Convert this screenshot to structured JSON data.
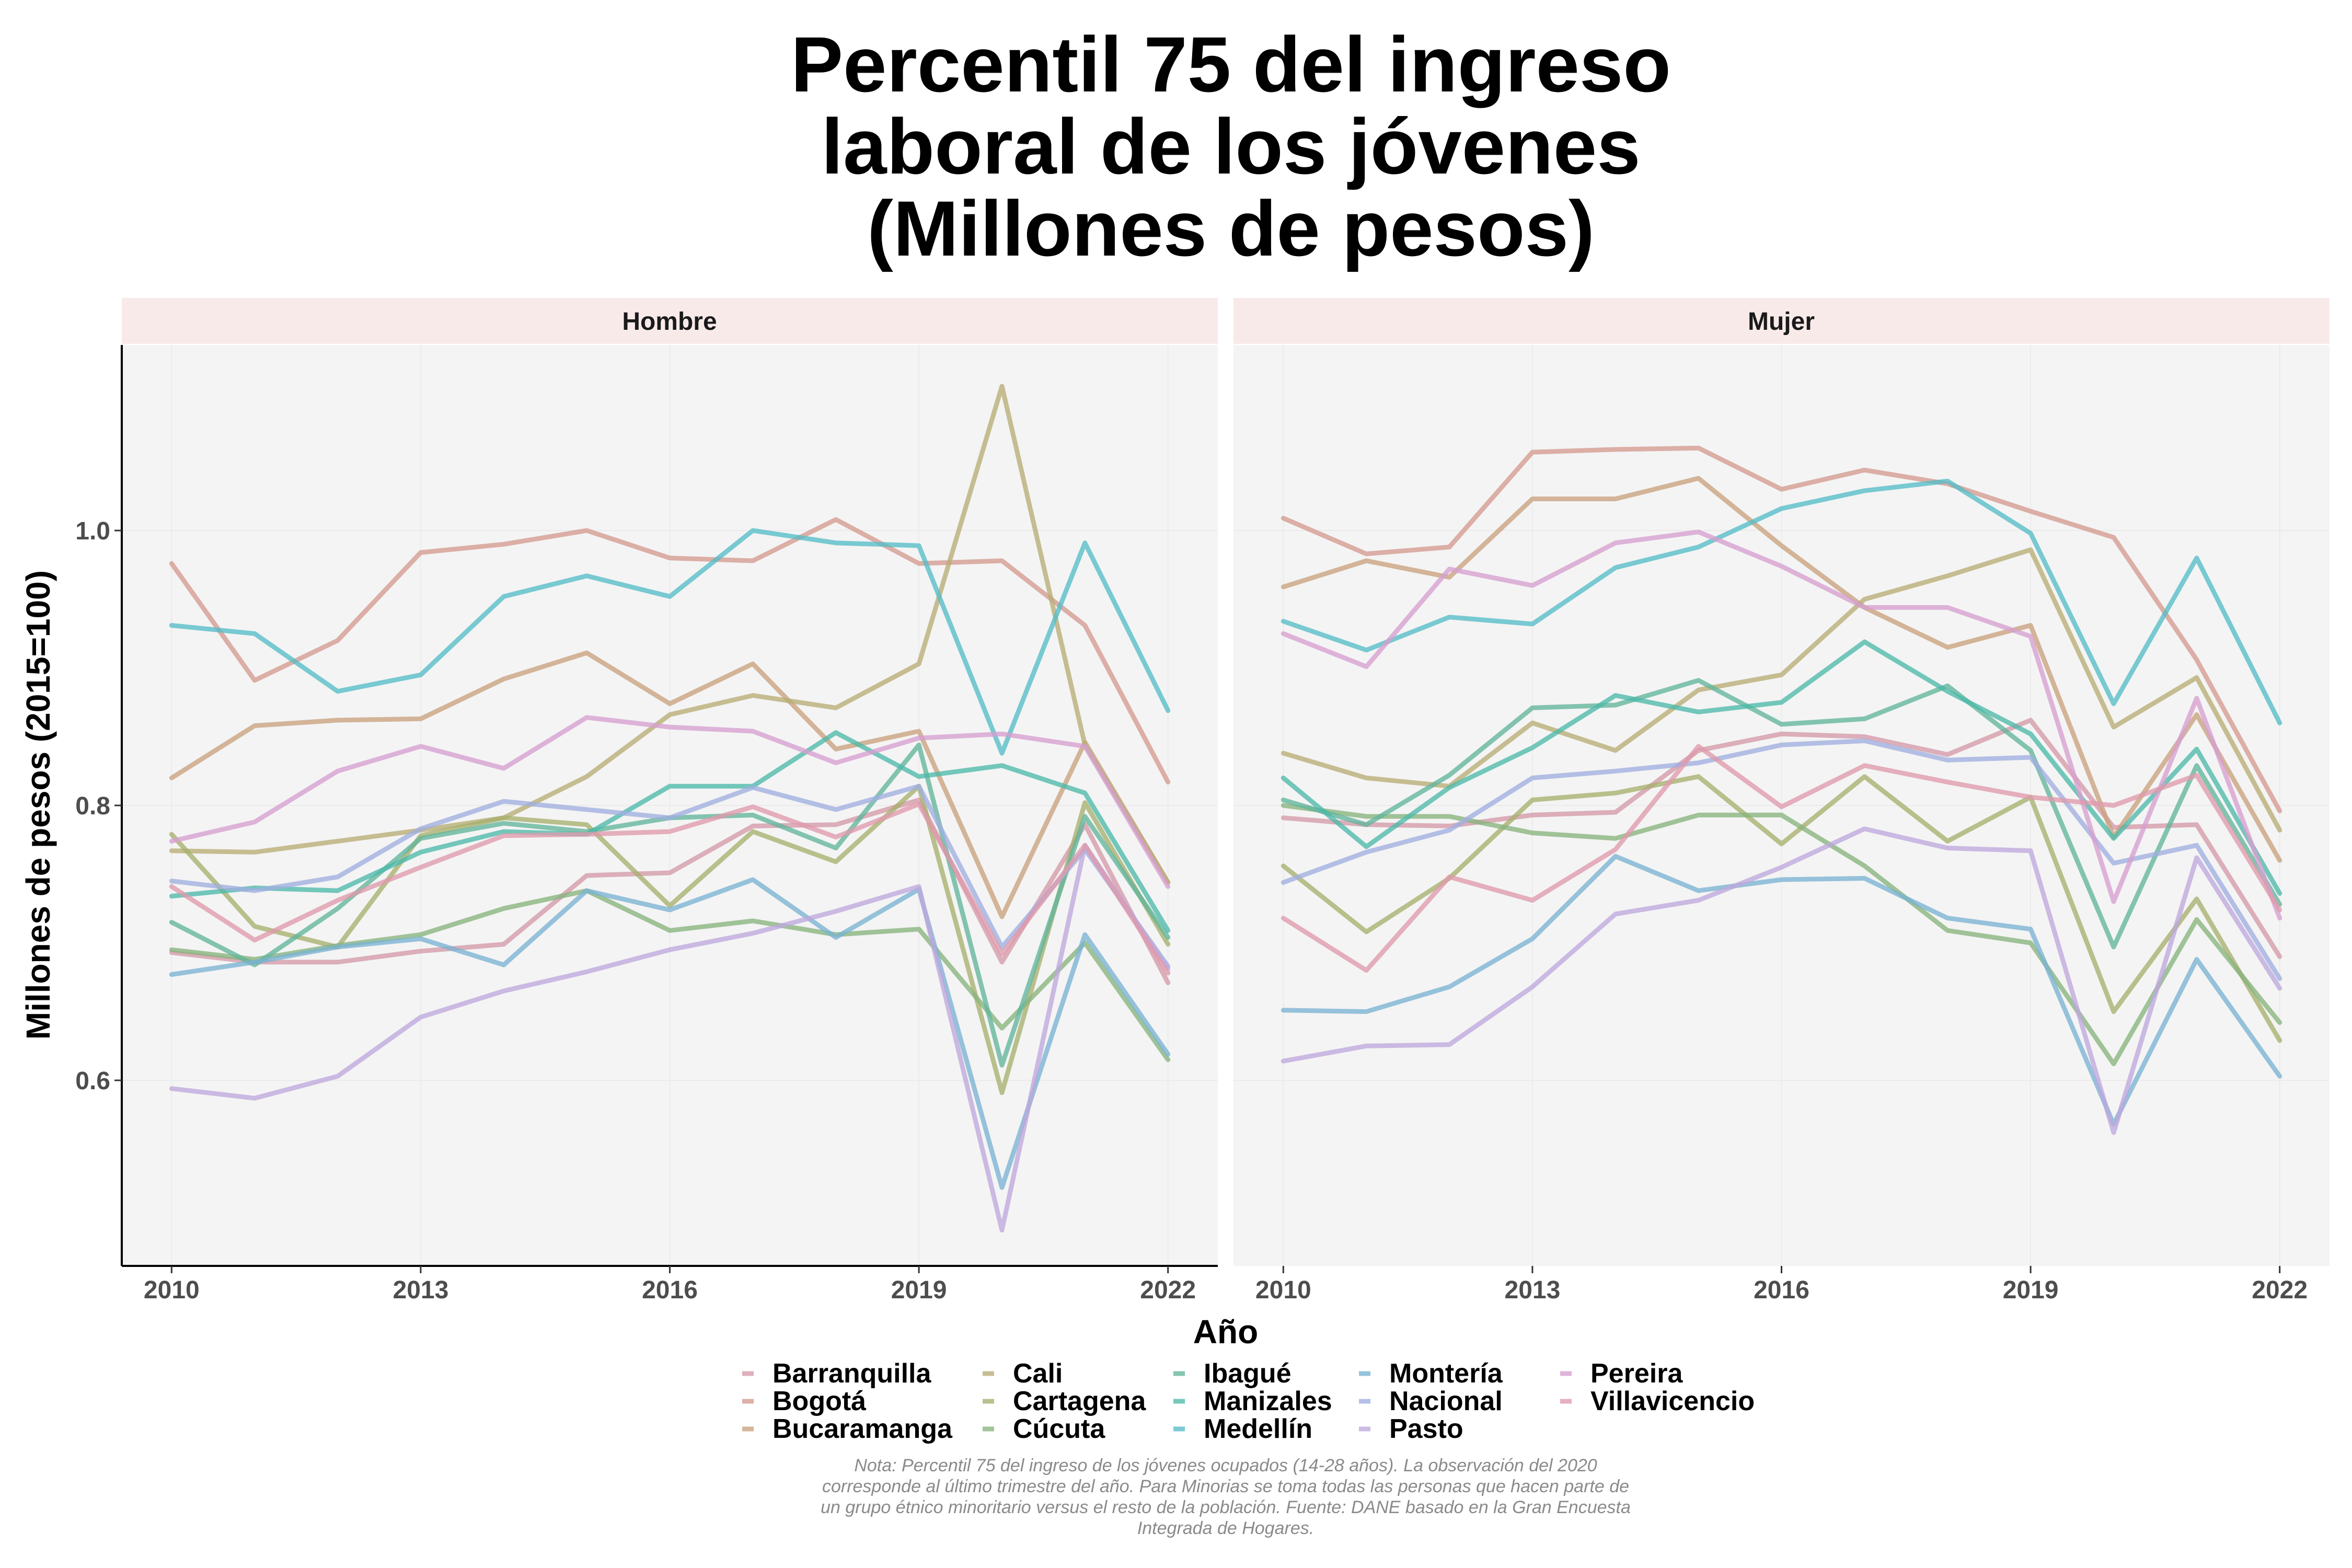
{
  "chart_data": {
    "type": "line",
    "title": [
      "Percentil 75 del ingreso",
      "laboral de los jóvenes",
      "(Millones de pesos)"
    ],
    "xlabel": "Año",
    "ylabel": "Millones de pesos (2015=100)",
    "x": [
      2010,
      2011,
      2012,
      2013,
      2014,
      2015,
      2016,
      2017,
      2018,
      2019,
      2020,
      2021,
      2022
    ],
    "xticks": [
      2010,
      2013,
      2016,
      2019,
      2022
    ],
    "xlim": [
      2009.4,
      2022.6
    ],
    "ylim": [
      0.465,
      1.135
    ],
    "yticks": [
      0.6,
      0.8,
      1.0
    ],
    "ytick_labels": [
      "0.6",
      "0.8",
      "1.0"
    ],
    "grid": true,
    "legend_position": "bottom",
    "colors": {
      "Barranquilla": "#d49aa8",
      "Bogotá": "#d49a90",
      "Bucaramanga": "#c9a27e",
      "Cali": "#b7ad74",
      "Cartagena": "#a7b06d",
      "Cúcuta": "#87b47c",
      "Ibagué": "#62b59b",
      "Manizales": "#4db8a9",
      "Medellín": "#54bcc6",
      "Montería": "#7ab2d2",
      "Nacional": "#a0aee0",
      "Pasto": "#bea8dc",
      "Pereira": "#d69fd0",
      "Villavicencio": "#df9aac"
    },
    "facets": [
      {
        "name": "Hombre",
        "series": [
          {
            "name": "Barranquilla",
            "values": [
              0.693,
              0.686,
              0.686,
              0.694,
              0.699,
              0.749,
              0.751,
              0.785,
              0.786,
              0.804,
              0.686,
              0.786,
              0.671
            ]
          },
          {
            "name": "Bogotá",
            "values": [
              0.976,
              0.891,
              0.92,
              0.984,
              0.99,
              1.0,
              0.98,
              0.978,
              1.008,
              0.976,
              0.978,
              0.931,
              0.817
            ]
          },
          {
            "name": "Bucaramanga",
            "values": [
              0.82,
              0.858,
              0.862,
              0.863,
              0.892,
              0.911,
              0.874,
              0.903,
              0.841,
              0.854,
              0.719,
              0.846,
              0.744
            ]
          },
          {
            "name": "Cali",
            "values": [
              0.767,
              0.766,
              0.774,
              0.782,
              0.791,
              0.821,
              0.866,
              0.88,
              0.871,
              0.903,
              1.105,
              0.844,
              0.744
            ]
          },
          {
            "name": "Cartagena",
            "values": [
              0.779,
              0.712,
              0.697,
              0.778,
              0.791,
              0.786,
              0.727,
              0.781,
              0.759,
              0.814,
              0.591,
              0.802,
              0.699
            ]
          },
          {
            "name": "Cúcuta",
            "values": [
              0.695,
              0.688,
              0.698,
              0.706,
              0.725,
              0.738,
              0.709,
              0.716,
              0.706,
              0.71,
              0.638,
              0.7,
              0.615
            ]
          },
          {
            "name": "Ibagué",
            "values": [
              0.715,
              0.684,
              0.725,
              0.776,
              0.787,
              0.781,
              0.791,
              0.793,
              0.769,
              0.844,
              0.611,
              0.792,
              0.704
            ]
          },
          {
            "name": "Manizales",
            "values": [
              0.734,
              0.74,
              0.738,
              0.766,
              0.781,
              0.779,
              0.814,
              0.814,
              0.853,
              0.821,
              0.829,
              0.809,
              0.709
            ]
          },
          {
            "name": "Medellín",
            "values": [
              0.931,
              0.925,
              0.883,
              0.895,
              0.952,
              0.967,
              0.952,
              1.0,
              0.991,
              0.989,
              0.838,
              0.991,
              0.869
            ]
          },
          {
            "name": "Montería",
            "values": [
              0.677,
              0.686,
              0.697,
              0.703,
              0.684,
              0.738,
              0.724,
              0.746,
              0.704,
              0.739,
              0.522,
              0.706,
              0.619
            ]
          },
          {
            "name": "Nacional",
            "values": [
              0.745,
              0.738,
              0.748,
              0.783,
              0.803,
              0.797,
              0.791,
              0.813,
              0.797,
              0.814,
              0.697,
              0.768,
              0.683
            ]
          },
          {
            "name": "Pasto",
            "values": [
              0.594,
              0.587,
              0.603,
              0.646,
              0.665,
              0.679,
              0.695,
              0.707,
              0.723,
              0.741,
              0.491,
              0.771,
              0.681
            ]
          },
          {
            "name": "Pereira",
            "values": [
              0.774,
              0.788,
              0.825,
              0.843,
              0.827,
              0.864,
              0.857,
              0.854,
              0.831,
              0.849,
              0.852,
              0.843,
              0.741
            ]
          },
          {
            "name": "Villavicencio",
            "values": [
              0.741,
              0.702,
              0.731,
              0.755,
              0.778,
              0.779,
              0.781,
              0.799,
              0.777,
              0.801,
              0.692,
              0.771,
              0.678
            ]
          }
        ]
      },
      {
        "name": "Mujer",
        "series": [
          {
            "name": "Barranquilla",
            "values": [
              0.791,
              0.786,
              0.785,
              0.793,
              0.795,
              0.84,
              0.852,
              0.85,
              0.837,
              0.862,
              0.784,
              0.786,
              0.69
            ]
          },
          {
            "name": "Bogotá",
            "values": [
              1.009,
              0.983,
              0.988,
              1.057,
              1.059,
              1.06,
              1.03,
              1.044,
              1.034,
              1.014,
              0.995,
              0.906,
              0.796
            ]
          },
          {
            "name": "Bucaramanga",
            "values": [
              0.959,
              0.978,
              0.966,
              1.023,
              1.023,
              1.038,
              0.989,
              0.944,
              0.915,
              0.931,
              0.777,
              0.866,
              0.76
            ]
          },
          {
            "name": "Cali",
            "values": [
              0.838,
              0.82,
              0.814,
              0.86,
              0.84,
              0.884,
              0.895,
              0.95,
              0.967,
              0.986,
              0.857,
              0.893,
              0.782
            ]
          },
          {
            "name": "Cartagena",
            "values": [
              0.756,
              0.708,
              0.747,
              0.804,
              0.809,
              0.821,
              0.772,
              0.821,
              0.774,
              0.806,
              0.65,
              0.732,
              0.629
            ]
          },
          {
            "name": "Cúcuta",
            "values": [
              0.8,
              0.792,
              0.792,
              0.78,
              0.776,
              0.793,
              0.793,
              0.756,
              0.709,
              0.7,
              0.612,
              0.717,
              0.642
            ]
          },
          {
            "name": "Ibagué",
            "values": [
              0.804,
              0.786,
              0.822,
              0.871,
              0.873,
              0.891,
              0.859,
              0.863,
              0.887,
              0.84,
              0.697,
              0.829,
              0.728
            ]
          },
          {
            "name": "Manizales",
            "values": [
              0.82,
              0.77,
              0.813,
              0.842,
              0.88,
              0.868,
              0.875,
              0.919,
              0.883,
              0.852,
              0.776,
              0.841,
              0.736
            ]
          },
          {
            "name": "Medellín",
            "values": [
              0.934,
              0.913,
              0.937,
              0.932,
              0.973,
              0.988,
              1.016,
              1.029,
              1.036,
              0.998,
              0.874,
              0.98,
              0.86
            ]
          },
          {
            "name": "Montería",
            "values": [
              0.651,
              0.65,
              0.668,
              0.703,
              0.763,
              0.738,
              0.746,
              0.747,
              0.718,
              0.71,
              0.568,
              0.688,
              0.603
            ]
          },
          {
            "name": "Nacional",
            "values": [
              0.744,
              0.766,
              0.782,
              0.82,
              0.825,
              0.831,
              0.844,
              0.847,
              0.833,
              0.835,
              0.758,
              0.771,
              0.674
            ]
          },
          {
            "name": "Pasto",
            "values": [
              0.614,
              0.625,
              0.626,
              0.668,
              0.721,
              0.731,
              0.755,
              0.783,
              0.769,
              0.767,
              0.562,
              0.762,
              0.667
            ]
          },
          {
            "name": "Pereira",
            "values": [
              0.925,
              0.901,
              0.972,
              0.96,
              0.991,
              0.999,
              0.974,
              0.944,
              0.944,
              0.923,
              0.73,
              0.878,
              0.718
            ]
          },
          {
            "name": "Villavicencio",
            "values": [
              0.718,
              0.68,
              0.748,
              0.731,
              0.768,
              0.843,
              0.799,
              0.829,
              0.817,
              0.806,
              0.8,
              0.822,
              0.724
            ]
          }
        ]
      }
    ],
    "legend": [
      "Barranquilla",
      "Bogotá",
      "Bucaramanga",
      "Cali",
      "Cartagena",
      "Cúcuta",
      "Ibagué",
      "Manizales",
      "Medellín",
      "Montería",
      "Nacional",
      "Pasto",
      "Pereira",
      "Villavicencio"
    ],
    "note": [
      "Nota: Percentil 75 del ingreso de los jóvenes ocupados (14-28 años). La observación del 2020",
      "corresponde al último trimestre del año. Para Minorias se toma todas las personas que hacen parte de",
      "un grupo étnico minoritario versus el resto de la población. Fuente: DANE basado en la Gran Encuesta",
      "Integrada de Hogares."
    ]
  }
}
